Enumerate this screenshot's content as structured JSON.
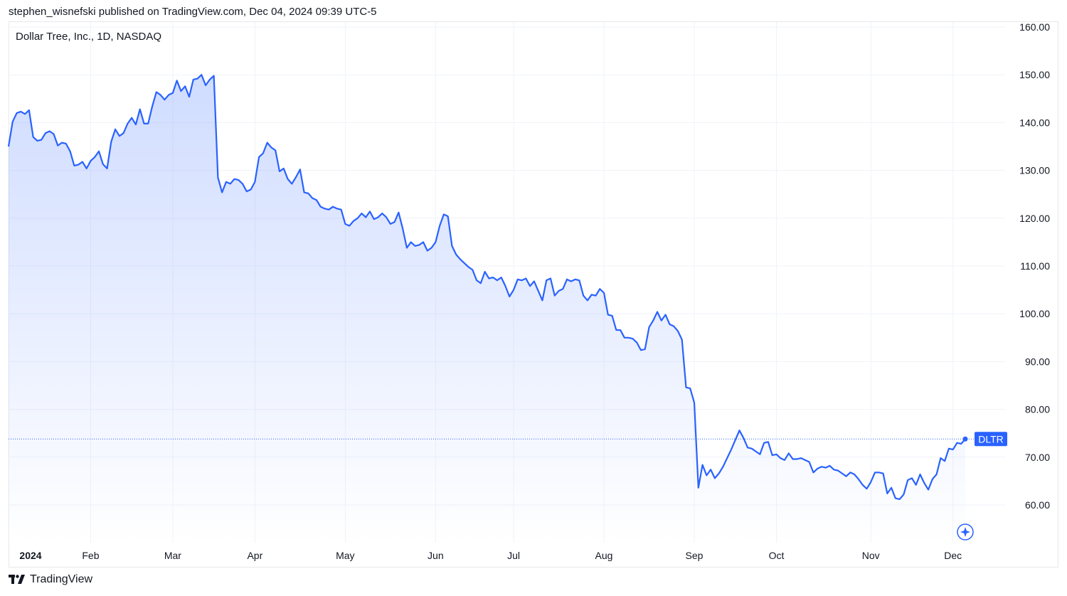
{
  "header": {
    "published": "stephen_wisnefski published on TradingView.com, Dec 04, 2024 09:39 UTC-5"
  },
  "footer": {
    "brand": "TradingView"
  },
  "chart_data": {
    "type": "area",
    "title": "Dollar Tree, Inc., 1D, NASDAQ",
    "symbol": "DLTR",
    "last_value": 73.8,
    "line_color": "#2962ff",
    "fill_color": "#2962ff",
    "ylim": [
      52.5,
      161.5
    ],
    "y_ticks": [
      "160.00",
      "150.00",
      "140.00",
      "130.00",
      "120.00",
      "110.00",
      "100.00",
      "90.00",
      "80.00",
      "70.00",
      "60.00"
    ],
    "x_ticks": [
      {
        "label": "2024",
        "index": 0,
        "bold": true
      },
      {
        "label": "Feb",
        "index": 20
      },
      {
        "label": "Mar",
        "index": 40
      },
      {
        "label": "Apr",
        "index": 60
      },
      {
        "label": "May",
        "index": 82
      },
      {
        "label": "Jun",
        "index": 104
      },
      {
        "label": "Jul",
        "index": 123
      },
      {
        "label": "Aug",
        "index": 145
      },
      {
        "label": "Sep",
        "index": 167
      },
      {
        "label": "Oct",
        "index": 187
      },
      {
        "label": "Nov",
        "index": 210
      },
      {
        "label": "Dec",
        "index": 230
      }
    ],
    "grid": true,
    "legend": "none",
    "values": [
      135.0,
      140.2,
      142.0,
      142.3,
      141.8,
      142.6,
      137.0,
      136.2,
      136.4,
      137.8,
      138.2,
      137.6,
      135.2,
      135.8,
      135.6,
      134.0,
      131.0,
      131.2,
      131.8,
      130.4,
      132.0,
      132.8,
      134.0,
      131.3,
      130.4,
      136.0,
      138.6,
      137.2,
      137.8,
      139.8,
      141.0,
      139.6,
      142.8,
      139.8,
      139.8,
      143.4,
      146.4,
      145.8,
      144.8,
      145.8,
      146.2,
      148.8,
      146.6,
      147.6,
      145.4,
      149.0,
      149.2,
      150.0,
      147.8,
      149.0,
      149.8,
      128.5,
      125.4,
      127.6,
      127.2,
      128.2,
      128.0,
      127.2,
      125.6,
      126.0,
      127.6,
      132.8,
      133.6,
      135.8,
      134.8,
      134.2,
      129.8,
      130.4,
      128.2,
      127.2,
      128.6,
      130.2,
      125.4,
      125.2,
      124.2,
      123.8,
      122.4,
      122.0,
      121.8,
      122.4,
      122.0,
      121.8,
      118.8,
      118.4,
      119.4,
      120.0,
      121.0,
      120.2,
      121.4,
      119.8,
      120.2,
      121.0,
      120.2,
      118.8,
      119.2,
      121.2,
      117.8,
      113.8,
      115.0,
      114.2,
      114.4,
      115.0,
      113.2,
      113.8,
      115.0,
      118.4,
      120.8,
      120.4,
      114.2,
      112.4,
      111.4,
      110.6,
      109.8,
      109.2,
      107.0,
      106.4,
      108.8,
      107.4,
      107.6,
      107.0,
      107.6,
      105.8,
      103.6,
      105.0,
      107.2,
      107.0,
      107.4,
      105.8,
      106.8,
      104.8,
      102.8,
      107.0,
      107.4,
      103.8,
      104.8,
      105.2,
      107.2,
      106.8,
      107.2,
      107.0,
      103.8,
      102.8,
      104.0,
      103.8,
      105.2,
      104.4,
      99.8,
      99.6,
      96.6,
      96.6,
      95.0,
      95.0,
      94.8,
      94.0,
      92.4,
      92.6,
      97.2,
      98.6,
      100.4,
      98.6,
      99.8,
      97.8,
      97.4,
      96.4,
      94.6,
      84.6,
      84.4,
      81.4,
      63.6,
      68.4,
      66.2,
      67.4,
      65.6,
      66.6,
      68.0,
      69.8,
      71.6,
      73.6,
      75.6,
      74.0,
      72.0,
      71.8,
      71.2,
      70.6,
      73.0,
      73.2,
      70.4,
      70.6,
      69.8,
      69.4,
      70.8,
      69.6,
      69.6,
      69.8,
      69.4,
      69.0,
      66.8,
      67.6,
      68.0,
      67.8,
      68.2,
      67.4,
      67.2,
      66.6,
      66.0,
      66.8,
      66.4,
      65.4,
      64.2,
      63.4,
      64.8,
      66.8,
      66.8,
      66.6,
      62.4,
      63.6,
      61.4,
      61.2,
      62.2,
      65.2,
      65.6,
      64.2,
      66.4,
      64.6,
      63.2,
      65.4,
      66.4,
      69.8,
      69.2,
      71.8,
      71.6,
      73.0,
      72.8,
      73.8
    ]
  },
  "controls": {
    "zoom_button_icon": "sparkle-icon"
  }
}
